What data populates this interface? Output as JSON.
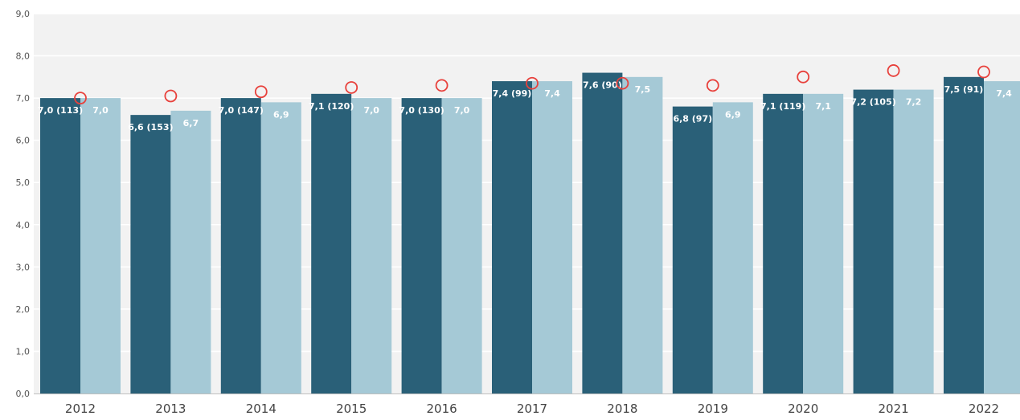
{
  "chart_data": {
    "type": "bar",
    "categories": [
      "2012",
      "2013",
      "2014",
      "2015",
      "2016",
      "2017",
      "2018",
      "2019",
      "2020",
      "2021",
      "2022"
    ],
    "series": [
      {
        "type": "bar",
        "color": "#2a6078",
        "values": [
          7.0,
          6.6,
          7.0,
          7.1,
          7.0,
          7.4,
          7.6,
          6.8,
          7.1,
          7.2,
          7.5
        ],
        "labels": [
          "7,0 (113)",
          "6,6 (153)",
          "7,0 (147)",
          "7,1 (120)",
          "7,0 (130)",
          "7,4 (99)",
          "7,6 (90)",
          "6,8 (97)",
          "7,1 (119)",
          "7,2 (105)",
          "7,5 (91)"
        ]
      },
      {
        "type": "bar",
        "color": "#a5c9d6",
        "values": [
          7.0,
          6.7,
          6.9,
          7.0,
          7.0,
          7.4,
          7.5,
          6.9,
          7.1,
          7.2,
          7.4
        ],
        "labels": [
          "7,0",
          "6,7",
          "6,9",
          "7,0",
          "7,0",
          "7,4",
          "7,5",
          "6,9",
          "7,1",
          "7,2",
          "7,4"
        ]
      },
      {
        "type": "scatter",
        "marker": "open-circle",
        "color": "#e8413c",
        "values": [
          7.0,
          7.05,
          7.15,
          7.25,
          7.3,
          7.35,
          7.35,
          7.3,
          7.5,
          7.65,
          7.62
        ]
      }
    ],
    "yticks": [
      "0,0",
      "1,0",
      "2,0",
      "3,0",
      "4,0",
      "5,0",
      "6,0",
      "7,0",
      "8,0",
      "9,0"
    ],
    "ylim": [
      0,
      9
    ],
    "grid": true,
    "plot_background": "#f2f2f2",
    "grid_color": "#ffffff",
    "legend": "none"
  }
}
